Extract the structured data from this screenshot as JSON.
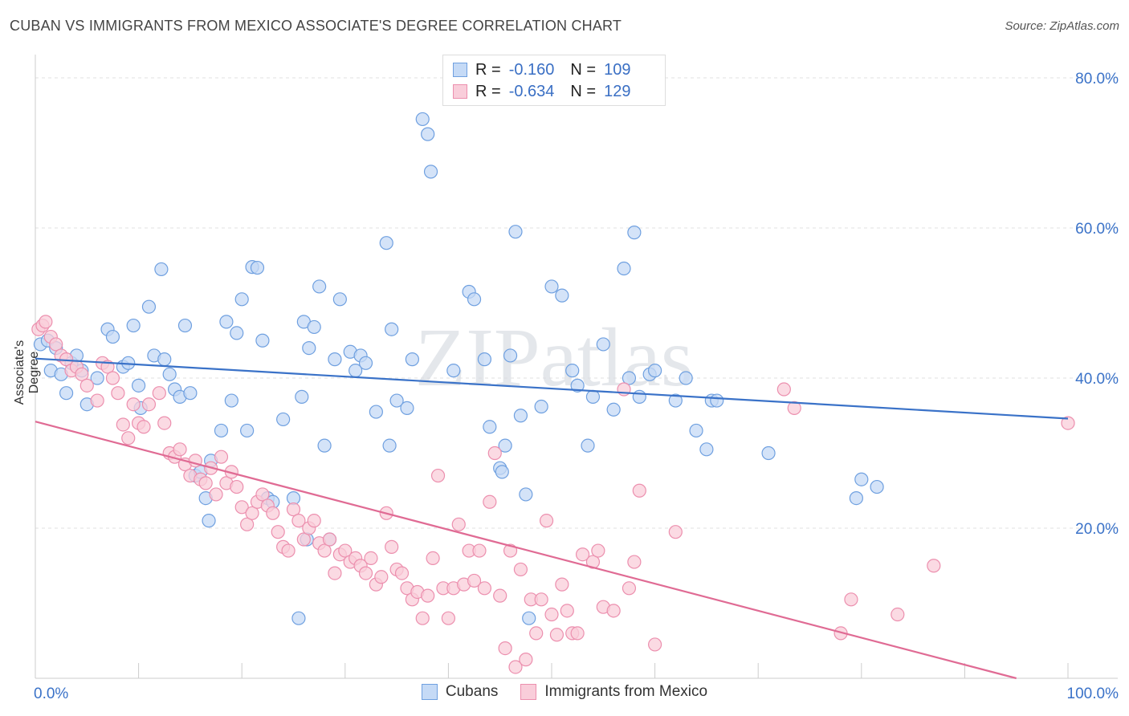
{
  "title": "CUBAN VS IMMIGRANTS FROM MEXICO ASSOCIATE'S DEGREE CORRELATION CHART",
  "source": "Source: ZipAtlas.com",
  "watermark": "ZIPatlas",
  "legend": {
    "rows": [
      {
        "r_label": "R =",
        "r_value": "-0.160",
        "n_label": "N =",
        "n_value": "109",
        "color": "#6fa0e0",
        "fill": "#c5daf6"
      },
      {
        "r_label": "R =",
        "r_value": "-0.634",
        "n_label": "N =",
        "n_value": "129",
        "color": "#ec8fae",
        "fill": "#f9cdda"
      }
    ]
  },
  "bottom_legend": [
    {
      "label": "Cubans",
      "color": "#6fa0e0",
      "fill": "#c5daf6"
    },
    {
      "label": "Immigrants from Mexico",
      "color": "#ec8fae",
      "fill": "#f9cdda"
    }
  ],
  "chart_data": {
    "type": "scatter",
    "title": "CUBAN VS IMMIGRANTS FROM MEXICO ASSOCIATE'S DEGREE CORRELATION CHART",
    "xlabel": "",
    "ylabel": "Associate's Degree",
    "xlim": [
      0,
      100
    ],
    "ylim": [
      0,
      80
    ],
    "x_tick_labels": [
      "0.0%",
      "100.0%"
    ],
    "y_ticks": [
      20,
      40,
      60,
      80
    ],
    "y_tick_labels": [
      "20.0%",
      "40.0%",
      "60.0%",
      "80.0%"
    ],
    "grid": "dashed horizontal",
    "legend_position": "top-center",
    "series": [
      {
        "name": "Cubans",
        "color": "#6fa0e0",
        "fill": "#c5daf6",
        "trend": {
          "x": [
            0,
            100
          ],
          "y": [
            42.6,
            34.6
          ]
        },
        "points": [
          [
            0.5,
            44.5
          ],
          [
            1.2,
            45
          ],
          [
            1.5,
            41
          ],
          [
            2,
            44
          ],
          [
            2.5,
            40.5
          ],
          [
            3,
            38
          ],
          [
            3.5,
            42
          ],
          [
            4,
            43
          ],
          [
            4.5,
            41
          ],
          [
            5,
            36.5
          ],
          [
            6,
            40
          ],
          [
            7,
            46.5
          ],
          [
            7.5,
            45.5
          ],
          [
            8.5,
            41.5
          ],
          [
            9,
            42
          ],
          [
            9.5,
            47
          ],
          [
            10,
            39
          ],
          [
            10.2,
            36
          ],
          [
            11,
            49.5
          ],
          [
            11.5,
            43
          ],
          [
            12.2,
            54.5
          ],
          [
            12.5,
            42.5
          ],
          [
            13,
            40.5
          ],
          [
            13.5,
            38.5
          ],
          [
            14,
            37.5
          ],
          [
            14.5,
            47
          ],
          [
            15,
            38
          ],
          [
            15.5,
            27
          ],
          [
            16,
            27.5
          ],
          [
            16.5,
            24
          ],
          [
            16.8,
            21
          ],
          [
            17,
            29
          ],
          [
            18,
            33
          ],
          [
            18.5,
            47.5
          ],
          [
            19,
            37
          ],
          [
            19.5,
            46
          ],
          [
            20,
            50.5
          ],
          [
            20.5,
            33
          ],
          [
            21,
            54.8
          ],
          [
            21.5,
            54.7
          ],
          [
            22,
            45
          ],
          [
            22.5,
            24
          ],
          [
            23,
            23.5
          ],
          [
            24,
            34.5
          ],
          [
            25,
            24
          ],
          [
            25.5,
            8
          ],
          [
            25.8,
            37.5
          ],
          [
            26,
            47.5
          ],
          [
            26.3,
            18.5
          ],
          [
            26.5,
            44
          ],
          [
            27,
            46.8
          ],
          [
            27.5,
            52.2
          ],
          [
            28,
            31
          ],
          [
            28.5,
            18.5
          ],
          [
            29,
            42.5
          ],
          [
            29.5,
            50.5
          ],
          [
            30.5,
            43.5
          ],
          [
            31,
            41
          ],
          [
            31.5,
            43
          ],
          [
            32,
            42
          ],
          [
            33,
            35.5
          ],
          [
            34,
            58
          ],
          [
            34.3,
            31
          ],
          [
            34.5,
            46.5
          ],
          [
            35,
            37
          ],
          [
            36,
            36
          ],
          [
            36.5,
            42.5
          ],
          [
            37.5,
            74.5
          ],
          [
            38,
            72.5
          ],
          [
            38.3,
            67.5
          ],
          [
            40.5,
            41
          ],
          [
            42,
            51.5
          ],
          [
            42.5,
            50.5
          ],
          [
            43.5,
            42.5
          ],
          [
            44,
            33.5
          ],
          [
            45,
            28
          ],
          [
            45.2,
            27.5
          ],
          [
            45.5,
            31
          ],
          [
            46,
            43
          ],
          [
            46.5,
            59.5
          ],
          [
            47,
            35
          ],
          [
            47.5,
            24.5
          ],
          [
            47.8,
            8
          ],
          [
            49,
            36.2
          ],
          [
            50,
            52.2
          ],
          [
            51,
            51
          ],
          [
            52,
            41
          ],
          [
            52.5,
            39
          ],
          [
            53.5,
            31
          ],
          [
            54,
            37.5
          ],
          [
            55,
            44.5
          ],
          [
            56,
            35.8
          ],
          [
            57,
            54.6
          ],
          [
            57.5,
            40
          ],
          [
            58,
            59.4
          ],
          [
            58.5,
            37.5
          ],
          [
            59.5,
            40.5
          ],
          [
            60,
            41
          ],
          [
            62,
            37
          ],
          [
            63,
            40
          ],
          [
            64,
            33
          ],
          [
            65,
            30.5
          ],
          [
            65.5,
            37
          ],
          [
            66,
            37
          ],
          [
            71,
            30
          ],
          [
            79.5,
            24
          ],
          [
            80,
            26.5
          ],
          [
            81.5,
            25.5
          ]
        ]
      },
      {
        "name": "Immigrants from Mexico",
        "color": "#ec8fae",
        "fill": "#f9cdda",
        "trend": {
          "x": [
            0,
            95
          ],
          "y": [
            34.2,
            0
          ]
        },
        "points": [
          [
            0.3,
            46.5
          ],
          [
            0.7,
            47
          ],
          [
            1,
            47.5
          ],
          [
            1.5,
            45.5
          ],
          [
            2,
            44.5
          ],
          [
            2.5,
            43
          ],
          [
            3,
            42.5
          ],
          [
            3.5,
            41
          ],
          [
            4,
            41.5
          ],
          [
            4.5,
            40.5
          ],
          [
            5,
            39
          ],
          [
            6,
            37
          ],
          [
            6.5,
            42
          ],
          [
            7,
            41.5
          ],
          [
            7.5,
            40
          ],
          [
            8,
            38
          ],
          [
            8.5,
            33.8
          ],
          [
            9,
            32
          ],
          [
            9.5,
            36.5
          ],
          [
            10,
            34
          ],
          [
            10.5,
            33.5
          ],
          [
            11,
            36.5
          ],
          [
            12,
            38
          ],
          [
            12.5,
            34
          ],
          [
            13,
            30
          ],
          [
            13.5,
            29.5
          ],
          [
            14,
            30.5
          ],
          [
            14.5,
            28.5
          ],
          [
            15,
            27
          ],
          [
            15.5,
            29
          ],
          [
            16,
            26.5
          ],
          [
            16.5,
            26
          ],
          [
            17,
            28
          ],
          [
            17.5,
            24.5
          ],
          [
            18,
            29.5
          ],
          [
            18.5,
            26
          ],
          [
            19,
            27.5
          ],
          [
            19.5,
            25.5
          ],
          [
            20,
            22.8
          ],
          [
            20.5,
            20.5
          ],
          [
            21,
            22
          ],
          [
            21.5,
            23.5
          ],
          [
            22,
            24.5
          ],
          [
            22.5,
            23
          ],
          [
            23,
            22
          ],
          [
            23.5,
            19.5
          ],
          [
            24,
            17.5
          ],
          [
            24.5,
            17
          ],
          [
            25,
            22.5
          ],
          [
            25.5,
            21
          ],
          [
            26,
            18.5
          ],
          [
            26.5,
            20
          ],
          [
            27,
            21
          ],
          [
            27.5,
            18
          ],
          [
            28,
            17
          ],
          [
            28.5,
            18.5
          ],
          [
            29,
            14
          ],
          [
            29.5,
            16.5
          ],
          [
            30,
            17
          ],
          [
            30.5,
            15.5
          ],
          [
            31,
            16
          ],
          [
            31.5,
            15
          ],
          [
            32,
            14
          ],
          [
            32.5,
            16
          ],
          [
            33,
            12.5
          ],
          [
            33.5,
            13.5
          ],
          [
            34,
            22
          ],
          [
            34.5,
            17.5
          ],
          [
            35,
            14.5
          ],
          [
            35.5,
            14
          ],
          [
            36,
            12
          ],
          [
            36.5,
            10.5
          ],
          [
            37,
            11.5
          ],
          [
            37.5,
            8
          ],
          [
            38,
            11
          ],
          [
            38.5,
            16
          ],
          [
            39,
            27
          ],
          [
            39.5,
            12
          ],
          [
            40,
            8
          ],
          [
            40.5,
            12
          ],
          [
            41,
            20.5
          ],
          [
            41.5,
            12.5
          ],
          [
            42,
            17
          ],
          [
            42.5,
            13
          ],
          [
            43,
            17
          ],
          [
            43.5,
            12
          ],
          [
            44,
            23.5
          ],
          [
            44.5,
            30
          ],
          [
            45,
            11
          ],
          [
            45.5,
            4
          ],
          [
            46,
            17
          ],
          [
            46.5,
            1.5
          ],
          [
            47,
            14.5
          ],
          [
            47.5,
            2.5
          ],
          [
            48,
            10.5
          ],
          [
            48.5,
            6
          ],
          [
            49,
            10.5
          ],
          [
            49.5,
            21
          ],
          [
            50,
            8.5
          ],
          [
            50.5,
            5.8
          ],
          [
            51,
            12.5
          ],
          [
            51.5,
            9
          ],
          [
            52,
            6
          ],
          [
            52.5,
            6
          ],
          [
            53,
            16.5
          ],
          [
            54,
            15.5
          ],
          [
            54.5,
            17
          ],
          [
            55,
            9.5
          ],
          [
            56,
            9
          ],
          [
            57,
            38.5
          ],
          [
            57.5,
            12
          ],
          [
            58,
            15.5
          ],
          [
            58.5,
            25
          ],
          [
            60,
            4.5
          ],
          [
            62,
            19.5
          ],
          [
            72.5,
            38.5
          ],
          [
            73.5,
            36
          ],
          [
            78,
            6
          ],
          [
            79,
            10.5
          ],
          [
            83.5,
            8.5
          ],
          [
            87,
            15
          ],
          [
            100,
            34
          ]
        ]
      }
    ]
  }
}
